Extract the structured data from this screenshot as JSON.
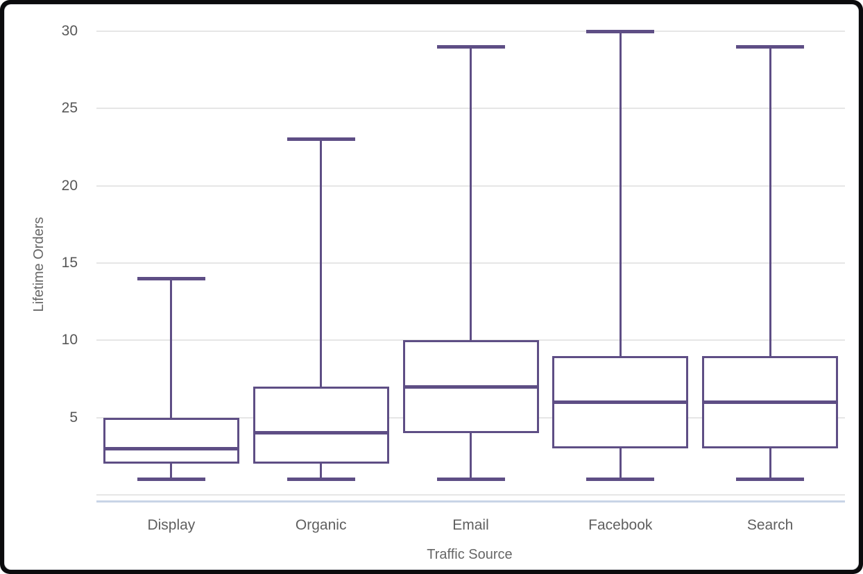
{
  "chart_data": {
    "type": "boxplot",
    "title": "",
    "xlabel": "Traffic Source",
    "ylabel": "Lifetime Orders",
    "ylim": [
      0,
      30
    ],
    "yticks": [
      5,
      10,
      15,
      20,
      25,
      30
    ],
    "grid": true,
    "legend_position": "none",
    "categories": [
      "Display",
      "Organic",
      "Email",
      "Facebook",
      "Search"
    ],
    "series": [
      {
        "name": "Display",
        "min": 1,
        "q1": 2,
        "median": 3,
        "q3": 5,
        "max": 14
      },
      {
        "name": "Organic",
        "min": 1,
        "q1": 2,
        "median": 4,
        "q3": 7,
        "max": 23
      },
      {
        "name": "Email",
        "min": 1,
        "q1": 4,
        "median": 7,
        "q3": 10,
        "max": 29
      },
      {
        "name": "Facebook",
        "min": 1,
        "q1": 3,
        "median": 6,
        "q3": 9,
        "max": 30
      },
      {
        "name": "Search",
        "min": 1,
        "q1": 3,
        "median": 6,
        "q3": 9,
        "max": 29
      }
    ],
    "colors": {
      "box_stroke": "#5e4e85",
      "box_fill": "#ffffff",
      "gridline": "#e6e6e6",
      "x_axis_line": "#c8d4e6",
      "tick_label": "#575757",
      "axis_title": "#666666",
      "plot_background": "#ffffff",
      "frame": "#0b0b0d"
    }
  }
}
